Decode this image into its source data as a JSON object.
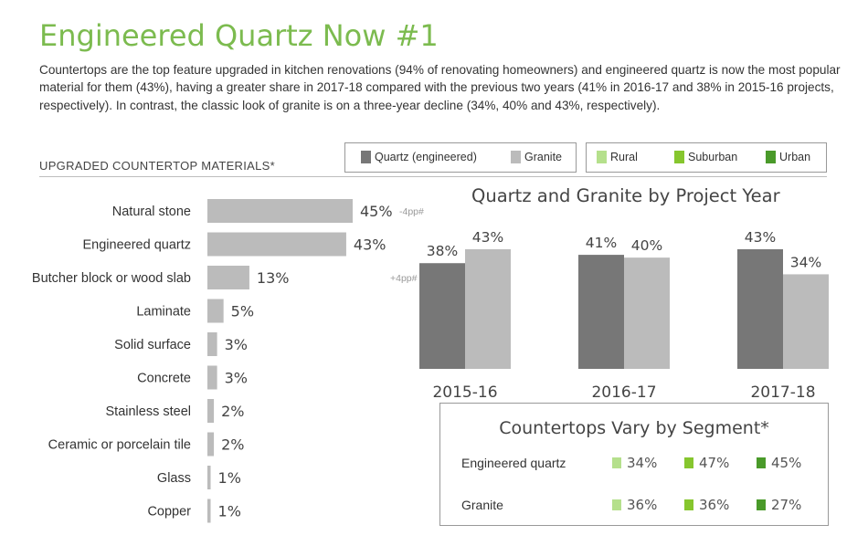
{
  "title": "Engineered Quartz Now #1",
  "description": "Countertops are the top feature upgraded in kitchen renovations (94% of renovating homeowners) and engineered quartz is now the most popular material for them (43%), having a greater share in 2017-18 compared with the previous two years (41% in 2016-17 and 38% in 2015-16 projects, respectively). In contrast, the classic look of granite is on a three-year decline (34%, 40% and 43%, respectively).",
  "section_label": "UPGRADED COUNTERTOP MATERIALS*",
  "legend_material": [
    {
      "label": "Quartz (engineered)",
      "color": "#777777"
    },
    {
      "label": "Granite",
      "color": "#bbbbbb"
    }
  ],
  "legend_segment": [
    {
      "label": "Rural",
      "color": "#b5e08c"
    },
    {
      "label": "Suburban",
      "color": "#86c62e"
    },
    {
      "label": "Urban",
      "color": "#4a9a2a"
    }
  ],
  "year_chart_title": "Quartz and Granite by Project Year",
  "segment_title": "Countertops Vary by Segment*",
  "segment_rows": [
    {
      "label": "Engineered quartz",
      "values": [
        "34%",
        "47%",
        "45%"
      ]
    },
    {
      "label": "Granite",
      "values": [
        "36%",
        "36%",
        "27%"
      ]
    }
  ],
  "chart_data": [
    {
      "type": "bar",
      "orientation": "horizontal",
      "title": "UPGRADED COUNTERTOP MATERIALS*",
      "categories": [
        "Natural stone",
        "Engineered quartz",
        "Butcher block or wood slab",
        "Laminate",
        "Solid surface",
        "Concrete",
        "Stainless steel",
        "Ceramic or porcelain tile",
        "Glass",
        "Copper"
      ],
      "values": [
        45,
        43,
        13,
        5,
        3,
        3,
        2,
        2,
        1,
        1
      ],
      "value_labels": [
        "45%",
        "43%",
        "13%",
        "5%",
        "3%",
        "3%",
        "2%",
        "2%",
        "1%",
        "1%"
      ],
      "annotations": [
        "-4pp#",
        "",
        "+4pp#",
        "",
        "",
        "",
        "",
        "",
        "",
        ""
      ],
      "bar_color": "#bbbbbb",
      "xlim": [
        0,
        45
      ]
    },
    {
      "type": "bar",
      "title": "Quartz and Granite by Project Year",
      "categories": [
        "2015-16",
        "2016-17",
        "2017-18"
      ],
      "series": [
        {
          "name": "Quartz (engineered)",
          "values": [
            38,
            41,
            43
          ],
          "value_labels": [
            "38%",
            "41%",
            "43%"
          ],
          "color": "#777777"
        },
        {
          "name": "Granite",
          "values": [
            43,
            40,
            34
          ],
          "value_labels": [
            "43%",
            "40%",
            "34%"
          ],
          "color": "#bbbbbb"
        }
      ],
      "ylim": [
        0,
        43
      ]
    }
  ]
}
